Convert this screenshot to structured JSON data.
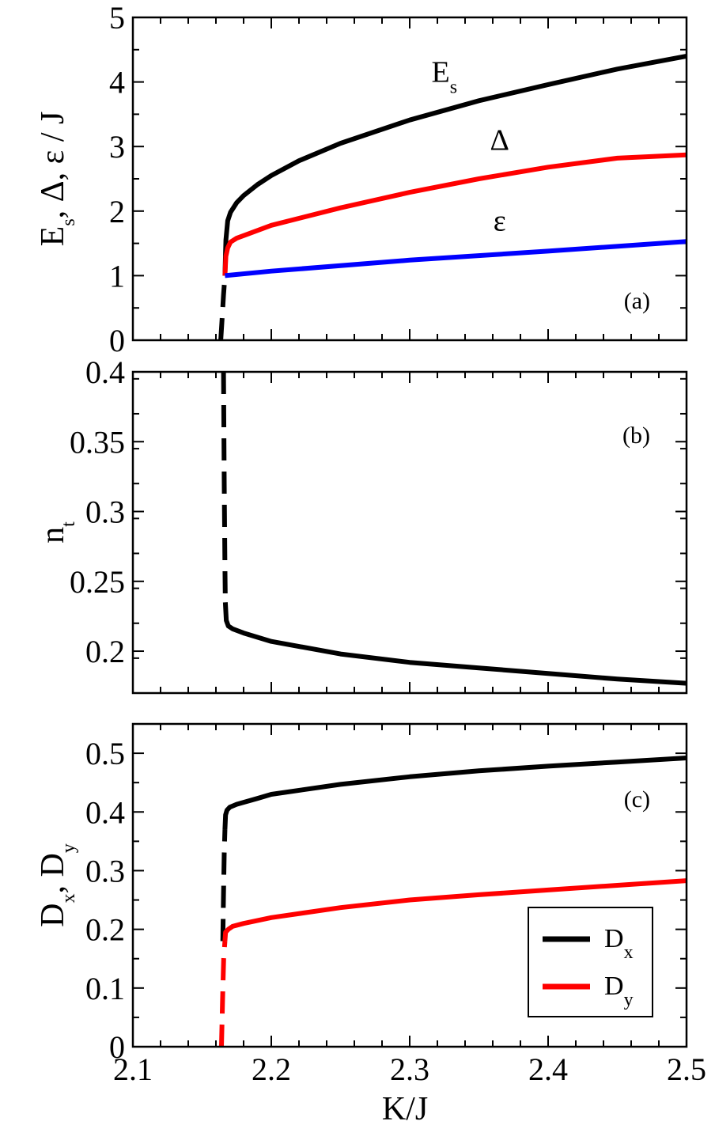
{
  "chart_data": [
    {
      "id": "a",
      "type": "line",
      "panel_label": "(a)",
      "ylabel": {
        "parts": [
          {
            "t": "E"
          },
          {
            "t": "s",
            "sub": true
          },
          {
            "t": ", Δ, ε / J"
          }
        ]
      },
      "xlim": [
        2.1,
        2.5
      ],
      "ylim": [
        0,
        5
      ],
      "yticks": [
        0,
        1,
        2,
        3,
        4,
        5
      ],
      "ytick_labels": [
        "0",
        "1",
        "2",
        "3",
        "4",
        "5"
      ],
      "series": [
        {
          "color": "#000000",
          "style": "solid",
          "x": [
            2.1665,
            2.1672,
            2.1685,
            2.1705,
            2.175,
            2.18,
            2.19,
            2.2,
            2.22,
            2.25,
            2.3,
            2.35,
            2.4,
            2.45,
            2.5
          ],
          "y": [
            1.0,
            1.55,
            1.85,
            1.98,
            2.13,
            2.24,
            2.41,
            2.55,
            2.78,
            3.05,
            3.41,
            3.71,
            3.96,
            4.2,
            4.4
          ]
        },
        {
          "color": "#000000",
          "style": "dashed",
          "x": [
            2.1635,
            2.1645,
            2.1655,
            2.1665
          ],
          "y": [
            0.0,
            0.35,
            0.7,
            1.0
          ]
        },
        {
          "color": "#ff0000",
          "style": "solid",
          "x": [
            2.1665,
            2.1672,
            2.1685,
            2.1705,
            2.175,
            2.18,
            2.2,
            2.25,
            2.3,
            2.35,
            2.4,
            2.45,
            2.5
          ],
          "y": [
            1.0,
            1.3,
            1.43,
            1.52,
            1.58,
            1.62,
            1.78,
            2.05,
            2.29,
            2.5,
            2.68,
            2.82,
            2.87
          ]
        },
        {
          "color": "#0000ff",
          "style": "solid",
          "x": [
            2.1665,
            2.2,
            2.3,
            2.4,
            2.5
          ],
          "y": [
            1.0,
            1.07,
            1.24,
            1.38,
            1.53
          ]
        }
      ],
      "annotations": [
        {
          "parts": [
            {
              "t": "E"
            },
            {
              "t": "s",
              "sub": true
            }
          ],
          "x": 2.325,
          "y": 4.0
        },
        {
          "parts": [
            {
              "t": "Δ"
            }
          ],
          "x": 2.365,
          "y": 2.95
        },
        {
          "parts": [
            {
              "t": "ε"
            }
          ],
          "x": 2.365,
          "y": 1.7
        }
      ]
    },
    {
      "id": "b",
      "type": "line",
      "panel_label": "(b)",
      "ylabel": {
        "parts": [
          {
            "t": "n"
          },
          {
            "t": "t",
            "sub": true
          }
        ]
      },
      "xlim": [
        2.1,
        2.5
      ],
      "ylim": [
        0.17,
        0.4
      ],
      "yticks": [
        0.2,
        0.25,
        0.3,
        0.35,
        0.4
      ],
      "ytick_labels": [
        "0.2",
        "0.25",
        "0.3",
        "0.35",
        "0.4"
      ],
      "series": [
        {
          "color": "#000000",
          "style": "dashed",
          "x": [
            2.1655,
            2.166,
            2.1665,
            2.1668
          ],
          "y": [
            0.4,
            0.32,
            0.26,
            0.235
          ]
        },
        {
          "color": "#000000",
          "style": "solid",
          "x": [
            2.1668,
            2.1675,
            2.169,
            2.172,
            2.18,
            2.2,
            2.25,
            2.3,
            2.35,
            2.4,
            2.45,
            2.5
          ],
          "y": [
            0.235,
            0.222,
            0.218,
            0.216,
            0.213,
            0.207,
            0.198,
            0.192,
            0.188,
            0.184,
            0.18,
            0.177
          ]
        }
      ]
    },
    {
      "id": "c",
      "type": "line",
      "panel_label": "(c)",
      "xlabel": "K/J",
      "ylabel": {
        "parts": [
          {
            "t": "D"
          },
          {
            "t": "x",
            "sub": true
          },
          {
            "t": ", D"
          },
          {
            "t": "y",
            "sub": true
          }
        ]
      },
      "xlim": [
        2.1,
        2.5
      ],
      "ylim": [
        0,
        0.55
      ],
      "xticks": [
        2.1,
        2.2,
        2.3,
        2.4,
        2.5
      ],
      "xtick_labels": [
        "2.1",
        "2.2",
        "2.3",
        "2.4",
        "2.5"
      ],
      "yticks": [
        0,
        0.1,
        0.2,
        0.3,
        0.4,
        0.5
      ],
      "ytick_labels": [
        "0",
        "0.1",
        "0.2",
        "0.3",
        "0.4",
        "0.5"
      ],
      "legend": {
        "placement": "bottom-right",
        "entries": [
          {
            "color": "#000000",
            "parts": [
              {
                "t": "D"
              },
              {
                "t": "x",
                "sub": true
              }
            ]
          },
          {
            "color": "#ff0000",
            "parts": [
              {
                "t": "D"
              },
              {
                "t": "y",
                "sub": true
              }
            ]
          }
        ]
      },
      "series": [
        {
          "color": "#000000",
          "style": "dashed",
          "x": [
            2.165,
            2.1655,
            2.166,
            2.1665
          ],
          "y": [
            0.18,
            0.26,
            0.33,
            0.37
          ]
        },
        {
          "color": "#000000",
          "style": "solid",
          "x": [
            2.1665,
            2.167,
            2.168,
            2.17,
            2.175,
            2.19,
            2.2,
            2.25,
            2.3,
            2.35,
            2.4,
            2.45,
            2.5
          ],
          "y": [
            0.37,
            0.395,
            0.403,
            0.408,
            0.413,
            0.423,
            0.43,
            0.447,
            0.46,
            0.47,
            0.478,
            0.485,
            0.492
          ]
        },
        {
          "color": "#ff0000",
          "style": "dashed",
          "x": [
            2.164,
            2.1648,
            2.1656,
            2.1665
          ],
          "y": [
            0.0,
            0.08,
            0.15,
            0.18
          ]
        },
        {
          "color": "#ff0000",
          "style": "solid",
          "x": [
            2.1665,
            2.167,
            2.169,
            2.172,
            2.18,
            2.2,
            2.25,
            2.3,
            2.35,
            2.4,
            2.45,
            2.5
          ],
          "y": [
            0.18,
            0.195,
            0.2,
            0.205,
            0.21,
            0.22,
            0.237,
            0.25,
            0.259,
            0.267,
            0.275,
            0.283
          ]
        }
      ]
    }
  ]
}
